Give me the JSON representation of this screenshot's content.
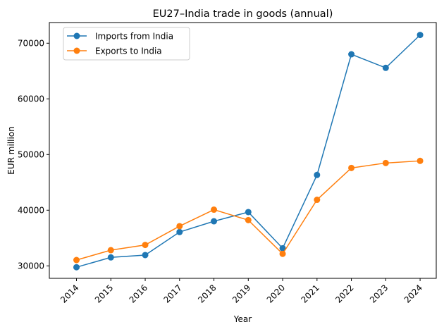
{
  "chart_data": {
    "type": "line",
    "title": "EU27–India trade in goods (annual)",
    "xlabel": "Year",
    "ylabel": "EUR million",
    "x": [
      2014,
      2015,
      2016,
      2017,
      2018,
      2019,
      2020,
      2021,
      2022,
      2023,
      2024
    ],
    "xticks": [
      "2014",
      "2015",
      "2016",
      "2017",
      "2018",
      "2019",
      "2020",
      "2021",
      "2022",
      "2023",
      "2024"
    ],
    "yticks": [
      30000,
      40000,
      50000,
      60000,
      70000
    ],
    "ytick_labels": [
      "30000",
      "40000",
      "50000",
      "60000",
      "70000"
    ],
    "xlim": [
      2013.21,
      2024.47
    ],
    "ylim": [
      27760,
      73710
    ],
    "grid": false,
    "legend_position": "top-left",
    "series": [
      {
        "name": "Imports from India",
        "color": "#1f77b4",
        "values": [
          29760,
          31520,
          31940,
          36080,
          38010,
          39660,
          33160,
          46330,
          68010,
          65570,
          71480
        ]
      },
      {
        "name": "Exports to India",
        "color": "#ff7f0e",
        "values": [
          31050,
          32820,
          33760,
          37130,
          40100,
          38220,
          32160,
          41870,
          47590,
          48480,
          48860
        ]
      }
    ]
  }
}
